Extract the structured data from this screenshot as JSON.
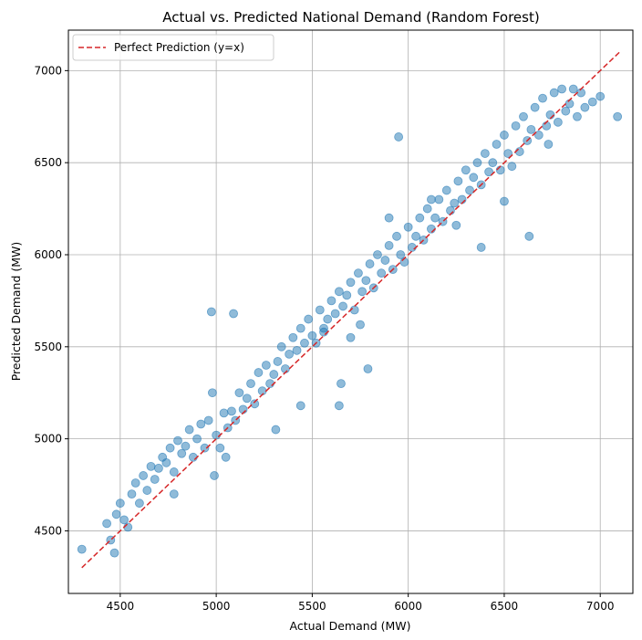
{
  "chart_data": {
    "type": "scatter",
    "title": "Actual vs. Predicted National Demand (Random Forest)",
    "xlabel": "Actual Demand (MW)",
    "ylabel": "Predicted Demand (MW)",
    "xlim": [
      4230,
      7170
    ],
    "ylim": [
      4160,
      7220
    ],
    "xticks": [
      4500,
      5000,
      5500,
      6000,
      6500,
      7000
    ],
    "yticks": [
      4500,
      5000,
      5500,
      6000,
      6500,
      7000
    ],
    "grid": true,
    "legend_position": "top-left",
    "colors": {
      "points": "#1f77b4",
      "reference_line": "#d62728"
    },
    "series": [
      {
        "name": "",
        "kind": "scatter",
        "x": [
          4300,
          4430,
          4450,
          4470,
          4480,
          4500,
          4520,
          4540,
          4560,
          4580,
          4600,
          4620,
          4640,
          4660,
          4680,
          4700,
          4720,
          4740,
          4760,
          4780,
          4800,
          4820,
          4840,
          4860,
          4880,
          4900,
          4920,
          4940,
          4960,
          4975,
          4980,
          5000,
          5020,
          5040,
          5060,
          5080,
          5100,
          5120,
          5140,
          5160,
          5180,
          5200,
          5220,
          5240,
          5260,
          5280,
          5300,
          5320,
          5340,
          5360,
          5380,
          5400,
          5420,
          5440,
          5460,
          5480,
          5500,
          5520,
          5540,
          5560,
          5580,
          5600,
          5620,
          5640,
          5660,
          5680,
          5700,
          5720,
          5740,
          5760,
          5780,
          5800,
          5820,
          5840,
          5860,
          5880,
          5900,
          5920,
          5940,
          5960,
          5980,
          6000,
          6020,
          6040,
          6060,
          6080,
          6100,
          6120,
          6140,
          6160,
          6180,
          6200,
          6220,
          6240,
          6260,
          6280,
          6300,
          6320,
          6340,
          6360,
          6380,
          6400,
          6420,
          6440,
          6460,
          6480,
          6500,
          6520,
          6540,
          6560,
          6580,
          6600,
          6620,
          6640,
          6660,
          6680,
          6700,
          6720,
          6740,
          6760,
          6780,
          6800,
          6820,
          6840,
          6860,
          6880,
          6900,
          6920,
          6960,
          7000,
          7090,
          5090,
          5440,
          5640,
          5700,
          5790,
          5950,
          6380,
          6630,
          5050,
          5310,
          4990,
          5650,
          5900,
          6250,
          6730,
          6500,
          4780,
          5560,
          6120,
          5750
        ],
        "y": [
          4400,
          4540,
          4450,
          4380,
          4590,
          4650,
          4560,
          4520,
          4700,
          4760,
          4650,
          4800,
          4720,
          4850,
          4780,
          4840,
          4900,
          4870,
          4950,
          4820,
          4990,
          4920,
          4960,
          5050,
          4900,
          5000,
          5080,
          4950,
          5100,
          5690,
          5250,
          5020,
          4950,
          5140,
          5060,
          5150,
          5100,
          5250,
          5160,
          5220,
          5300,
          5190,
          5360,
          5260,
          5400,
          5300,
          5350,
          5420,
          5500,
          5380,
          5460,
          5550,
          5480,
          5600,
          5520,
          5650,
          5560,
          5520,
          5700,
          5600,
          5650,
          5750,
          5680,
          5800,
          5720,
          5780,
          5850,
          5700,
          5900,
          5800,
          5860,
          5950,
          5820,
          6000,
          5900,
          5970,
          6050,
          5920,
          6100,
          6000,
          5960,
          6150,
          6040,
          6100,
          6200,
          6080,
          6250,
          6140,
          6200,
          6300,
          6180,
          6350,
          6240,
          6280,
          6400,
          6300,
          6460,
          6350,
          6420,
          6500,
          6380,
          6550,
          6450,
          6500,
          6600,
          6460,
          6650,
          6550,
          6480,
          6700,
          6560,
          6750,
          6620,
          6680,
          6800,
          6650,
          6850,
          6700,
          6760,
          6880,
          6720,
          6900,
          6780,
          6820,
          6900,
          6750,
          6880,
          6800,
          6830,
          6860,
          6750,
          5680,
          5180,
          5180,
          5550,
          5380,
          6640,
          6040,
          6100,
          4900,
          5050,
          4800,
          5300,
          6200,
          6160,
          6600,
          6290,
          4700,
          5580,
          6300,
          5620
        ]
      },
      {
        "name": "Perfect Prediction (y=x)",
        "kind": "line",
        "style": "dashed",
        "x": [
          4300,
          7100
        ],
        "y": [
          4300,
          7100
        ]
      }
    ]
  }
}
